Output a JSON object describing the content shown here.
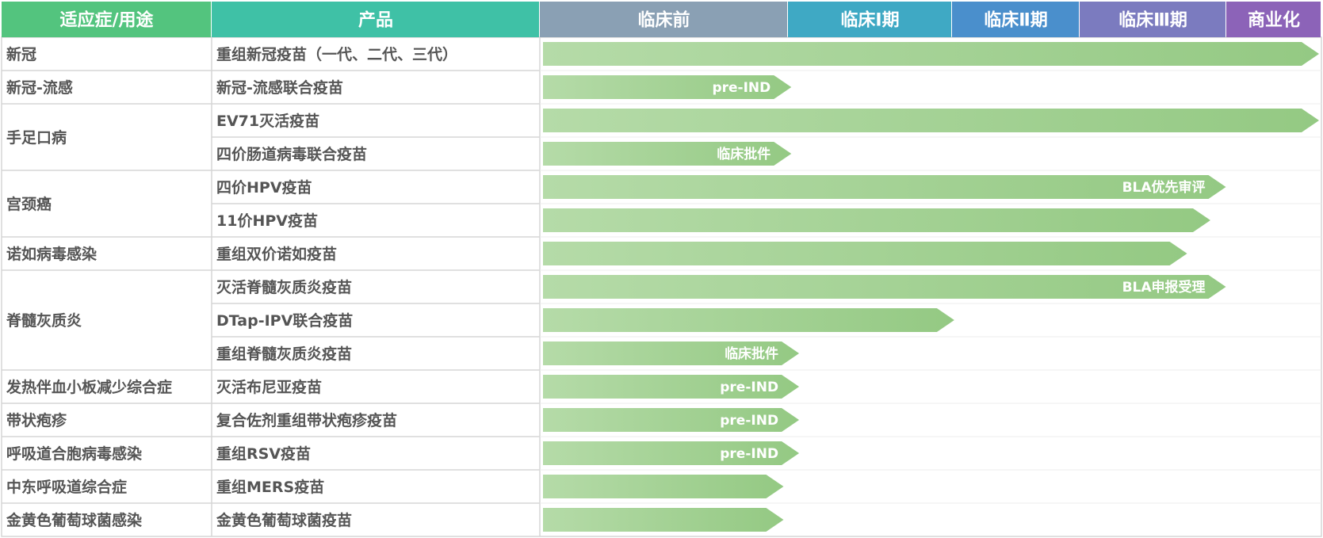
{
  "header": {
    "indication": "适应症/用途",
    "product": "产品",
    "stages": [
      {
        "label": "临床前",
        "color": "#8aa0b4"
      },
      {
        "label": "临床Ⅰ期",
        "color": "#3fa9c4"
      },
      {
        "label": "临床Ⅱ期",
        "color": "#4a8fcc"
      },
      {
        "label": "临床Ⅲ期",
        "color": "#7b7bbf"
      },
      {
        "label": "商业化",
        "color": "#8c63b8"
      }
    ],
    "indication_color": "#53c47e",
    "product_color": "#3fc1a6"
  },
  "chart_data": {
    "type": "table",
    "stages": [
      "临床前",
      "临床Ⅰ期",
      "临床Ⅱ期",
      "临床Ⅲ期",
      "商业化"
    ],
    "rows": [
      {
        "indication": "新冠",
        "product": "重组新冠疫苗（一代、二代、三代）",
        "progress": 1.0,
        "label": ""
      },
      {
        "indication": "新冠-流感",
        "product": "新冠-流感联合疫苗",
        "progress": 0.32,
        "label": "pre-IND"
      },
      {
        "indication": "手足口病",
        "product": "EV71灭活疫苗",
        "progress": 1.0,
        "label": ""
      },
      {
        "indication": "",
        "product": "四价肠道病毒联合疫苗",
        "progress": 0.32,
        "label": "临床批件"
      },
      {
        "indication": "宫颈癌",
        "product": "四价HPV疫苗",
        "progress": 0.88,
        "label": "BLA优先审评"
      },
      {
        "indication": "",
        "product": "11价HPV疫苗",
        "progress": 0.86,
        "label": ""
      },
      {
        "indication": "诺如病毒感染",
        "product": "重组双价诺如疫苗",
        "progress": 0.83,
        "label": ""
      },
      {
        "indication": "脊髓灰质炎",
        "product": "灭活脊髓灰质炎疫苗",
        "progress": 0.88,
        "label": "BLA申报受理"
      },
      {
        "indication": "",
        "product": "DTap-IPV联合疫苗",
        "progress": 0.53,
        "label": ""
      },
      {
        "indication": "",
        "product": "重组脊髓灰质炎疫苗",
        "progress": 0.33,
        "label": "临床批件"
      },
      {
        "indication": "发热伴血小板减少综合症",
        "product": "灭活布尼亚疫苗",
        "progress": 0.33,
        "label": "pre-IND"
      },
      {
        "indication": "带状疱疹",
        "product": "复合佐剂重组带状疱疹疫苗",
        "progress": 0.33,
        "label": "pre-IND"
      },
      {
        "indication": "呼吸道合胞病毒感染",
        "product": "重组RSV疫苗",
        "progress": 0.33,
        "label": "pre-IND"
      },
      {
        "indication": "中东呼吸道综合症",
        "product": "重组MERS疫苗",
        "progress": 0.31,
        "label": ""
      },
      {
        "indication": "金黄色葡萄球菌感染",
        "product": "金黄色葡萄球菌疫苗",
        "progress": 0.31,
        "label": ""
      }
    ],
    "indication_groups": [
      {
        "label": "新冠",
        "rows": [
          0,
          0
        ]
      },
      {
        "label": "新冠-流感",
        "rows": [
          1,
          1
        ]
      },
      {
        "label": "手足口病",
        "rows": [
          2,
          3
        ]
      },
      {
        "label": "宫颈癌",
        "rows": [
          4,
          5
        ]
      },
      {
        "label": "诺如病毒感染",
        "rows": [
          6,
          6
        ]
      },
      {
        "label": "脊髓灰质炎",
        "rows": [
          7,
          9
        ]
      },
      {
        "label": "发热伴血小板减少综合症",
        "rows": [
          10,
          10
        ]
      },
      {
        "label": "带状疱疹",
        "rows": [
          11,
          11
        ]
      },
      {
        "label": "呼吸道合胞病毒感染",
        "rows": [
          12,
          12
        ]
      },
      {
        "label": "中东呼吸道综合症",
        "rows": [
          13,
          13
        ]
      },
      {
        "label": "金黄色葡萄球菌感染",
        "rows": [
          14,
          14
        ]
      }
    ],
    "bar_color": "#9dcf8f"
  }
}
